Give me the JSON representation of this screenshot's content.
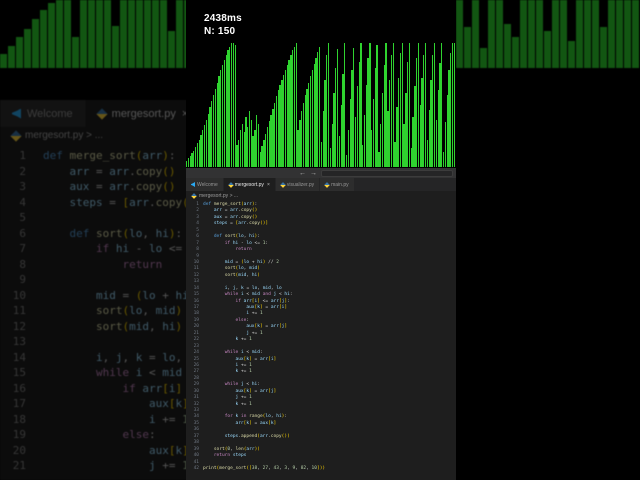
{
  "stats": {
    "time": "2438ms",
    "count": "N: 150"
  },
  "visualization": {
    "type": "bar",
    "bar_color": "#2fd32f",
    "background": "#000000",
    "values": [
      5,
      7,
      9,
      11,
      13,
      16,
      19,
      22,
      26,
      30,
      34,
      38,
      43,
      48,
      53,
      58,
      63,
      68,
      73,
      78,
      82,
      86,
      90,
      94,
      97,
      100,
      100,
      98,
      18,
      22,
      30,
      35,
      28,
      40,
      32,
      45,
      38,
      25,
      30,
      42,
      35,
      12,
      17,
      22,
      27,
      32,
      37,
      42,
      47,
      52,
      57,
      62,
      66,
      70,
      74,
      78,
      82,
      86,
      90,
      94,
      97,
      100,
      30,
      38,
      45,
      52,
      58,
      63,
      68,
      73,
      78,
      83,
      88,
      93,
      97,
      20,
      45,
      70,
      90,
      100,
      15,
      35,
      60,
      80,
      95,
      25,
      50,
      75,
      100,
      10,
      30,
      55,
      78,
      96,
      40,
      65,
      85,
      100,
      18,
      42,
      66,
      88,
      100,
      30,
      55,
      80,
      98,
      12,
      35,
      60,
      82,
      100,
      45,
      70,
      90,
      100,
      20,
      48,
      72,
      92,
      100,
      35,
      60,
      85,
      100,
      15,
      40,
      65,
      88,
      100,
      50,
      72,
      90,
      100,
      22,
      46,
      70,
      90,
      100,
      38,
      62,
      84,
      100,
      12,
      36,
      58,
      78,
      92,
      100,
      100
    ]
  },
  "titlebar": {
    "back": "←",
    "forward": "→",
    "search_placeholder": ""
  },
  "tabs": [
    {
      "label": "Welcome",
      "icon": "vscode-icon",
      "active": false,
      "close": ""
    },
    {
      "label": "mergesort.py",
      "icon": "python-icon",
      "active": true,
      "close": "×"
    },
    {
      "label": "visualizer.py",
      "icon": "python-icon",
      "active": false,
      "close": ""
    },
    {
      "label": "main.py",
      "icon": "python-icon",
      "active": false,
      "close": ""
    }
  ],
  "breadcrumb": {
    "text": "mergesort.py > ..."
  },
  "code": {
    "language": "python",
    "lines": [
      "def merge_sort(arr):",
      "    arr = arr.copy()",
      "    aux = arr.copy()",
      "    steps = [arr.copy()]",
      "",
      "    def sort(lo, hi):",
      "        if hi - lo <= 1:",
      "            return",
      "",
      "        mid = (lo + hi) // 2",
      "        sort(lo, mid)",
      "        sort(mid, hi)",
      "",
      "        i, j, k = lo, mid, lo",
      "        while i < mid and j < hi:",
      "            if arr[i] <= arr[j]:",
      "                aux[k] = arr[i]",
      "                i += 1",
      "            else:",
      "                aux[k] = arr[j]",
      "                j += 1",
      "            k += 1",
      "",
      "        while i < mid:",
      "            aux[k] = arr[i]",
      "            i += 1",
      "            k += 1",
      "",
      "        while j < hi:",
      "            aux[k] = arr[j]",
      "            j += 1",
      "            k += 1",
      "",
      "        for k in range(lo, hi):",
      "            arr[k] = aux[k]",
      "",
      "        steps.append(arr.copy())",
      "",
      "    sort(0, len(arr))",
      "    return steps",
      "",
      "print(merge_sort([38, 27, 43, 3, 9, 82, 10]))"
    ]
  },
  "background": {
    "bars": [
      20,
      32,
      45,
      58,
      72,
      85,
      95,
      100,
      100,
      45,
      100,
      100,
      100,
      100,
      62,
      100,
      100,
      100,
      100,
      100,
      100,
      55,
      100,
      100,
      100,
      100,
      100,
      100,
      100,
      70,
      100,
      100,
      100,
      100,
      100,
      48,
      100,
      100,
      100,
      100,
      100,
      100,
      100,
      65,
      100,
      100,
      100,
      100,
      100,
      100,
      40,
      100,
      100,
      100,
      35,
      55,
      100,
      100,
      60,
      100,
      30,
      100,
      100,
      65,
      45,
      100,
      100,
      100,
      55,
      100,
      100,
      40,
      100,
      100,
      100,
      60,
      100,
      100,
      100,
      100
    ],
    "editor": {
      "tabs": [
        {
          "label": "Welcome",
          "icon": "vscode-icon",
          "active": false,
          "close": ""
        },
        {
          "label": "mergesort.py",
          "icon": "python-icon",
          "active": true,
          "close": "×"
        }
      ],
      "breadcrumb": "mergesort.py > ...",
      "visible_code_lines": 21
    }
  }
}
